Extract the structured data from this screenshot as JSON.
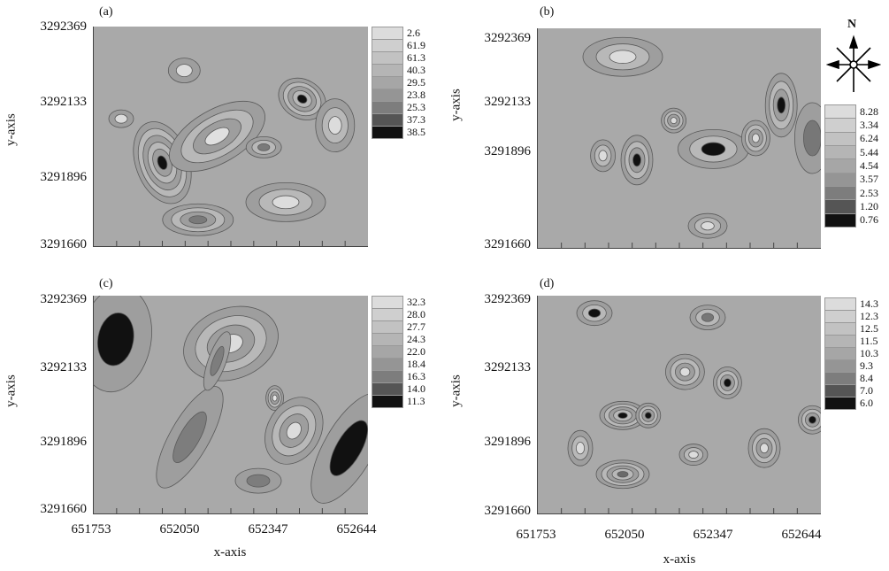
{
  "chart_data": [
    {
      "type": "heatmap",
      "panel": "(a)",
      "xlabel": "",
      "ylabel": "y-axis",
      "yticks": [
        "3292369",
        "3292133",
        "3291896",
        "3291660"
      ],
      "xticks": [],
      "legend": [
        "2.6",
        "61.9",
        "61.3",
        "40.3",
        "29.5",
        "23.8",
        "25.3",
        "37.3",
        "38.5"
      ],
      "legend_colors": [
        "#dcdcdc",
        "#cfcfcf",
        "#c2c2c2",
        "#b5b5b5",
        "#a6a6a6",
        "#959595",
        "#7d7d7d",
        "#555555",
        "#111111"
      ],
      "legend_placement": "right"
    },
    {
      "type": "heatmap",
      "panel": "(b)",
      "xlabel": "",
      "ylabel": "y-axis",
      "yticks": [
        "3292369",
        "3292133",
        "3291896",
        "3291660"
      ],
      "xticks": [],
      "legend": [
        "8.28",
        "3.34",
        "6.24",
        "5.44",
        "4.54",
        "3.57",
        "2.53",
        "1.20",
        "0.76"
      ],
      "legend_colors": [
        "#dcdcdc",
        "#cfcfcf",
        "#c2c2c2",
        "#b5b5b5",
        "#a6a6a6",
        "#959595",
        "#7d7d7d",
        "#555555",
        "#111111"
      ],
      "legend_placement": "right"
    },
    {
      "type": "heatmap",
      "panel": "(c)",
      "xlabel": "x-axis",
      "ylabel": "y-axis",
      "yticks": [
        "3292369",
        "3292133",
        "3291896",
        "3291660"
      ],
      "xticks": [
        "651753",
        "652050",
        "652347",
        "652644"
      ],
      "legend": [
        "32.3",
        "28.0",
        "27.7",
        "24.3",
        "22.0",
        "18.4",
        "16.3",
        "14.0",
        "11.3"
      ],
      "legend_colors": [
        "#dcdcdc",
        "#cfcfcf",
        "#c2c2c2",
        "#b5b5b5",
        "#a6a6a6",
        "#959595",
        "#7d7d7d",
        "#555555",
        "#111111"
      ],
      "legend_placement": "right"
    },
    {
      "type": "heatmap",
      "panel": "(d)",
      "xlabel": "x-axis",
      "ylabel": "y-axis",
      "yticks": [
        "3292369",
        "3292133",
        "3291896",
        "3291660"
      ],
      "xticks": [
        "651753",
        "652050",
        "652347",
        "652644"
      ],
      "legend": [
        "14.3",
        "12.3",
        "12.5",
        "11.5",
        "10.3",
        "9.3",
        "8.4",
        "7.0",
        "6.0"
      ],
      "legend_colors": [
        "#dcdcdc",
        "#cfcfcf",
        "#c2c2c2",
        "#b5b5b5",
        "#a6a6a6",
        "#959595",
        "#7d7d7d",
        "#555555",
        "#111111"
      ],
      "legend_placement": "right"
    }
  ],
  "compass": {
    "label": "N",
    "icon": "north-arrow-icon"
  }
}
